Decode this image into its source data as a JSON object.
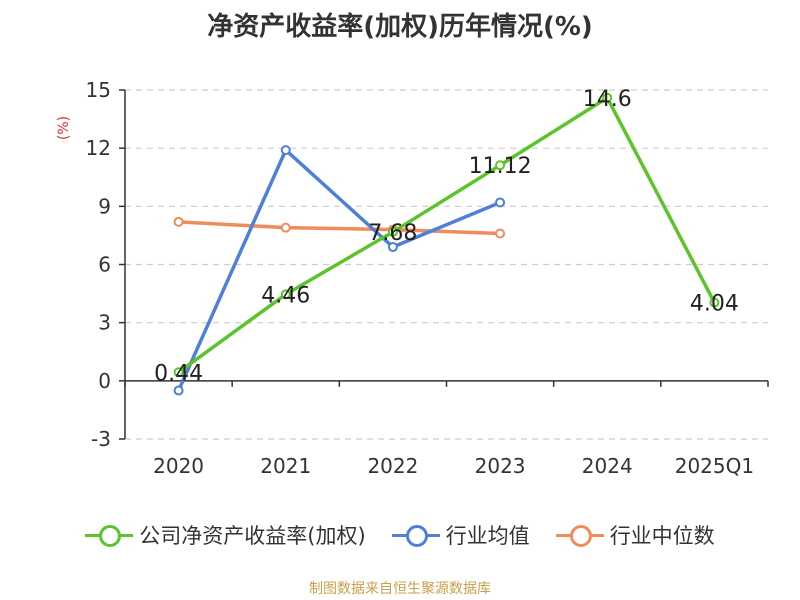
{
  "chart_data": {
    "type": "line",
    "title": "净资产收益率(加权)历年情况(%)",
    "ylabel": "(%)",
    "categories": [
      "2020",
      "2021",
      "2022",
      "2023",
      "2024",
      "2025Q1"
    ],
    "ylim": [
      -3,
      15
    ],
    "yticks": [
      "15",
      "12",
      "9",
      "6",
      "3",
      "0",
      "-3"
    ],
    "ytick_values": [
      15,
      12,
      9,
      6,
      3,
      0,
      -3
    ],
    "grid": true,
    "legend_position": "bottom",
    "series": [
      {
        "name": "公司净资产收益率(加权)",
        "color": "#5bc42a",
        "values": [
          0.44,
          4.46,
          7.68,
          11.12,
          14.6,
          4.04
        ],
        "labels": [
          "0.44",
          "4.46",
          "7.68",
          "11.12",
          "14.6",
          "4.04"
        ]
      },
      {
        "name": "行业均值",
        "color": "#4e7fdc",
        "values": [
          -0.5,
          11.9,
          6.9,
          9.2,
          null,
          null
        ]
      },
      {
        "name": "行业中位数",
        "color": "#f08c5a",
        "values": [
          8.2,
          7.9,
          7.8,
          7.6,
          null,
          null
        ]
      }
    ]
  },
  "source_text": "制图数据来自恒生聚源数据库"
}
